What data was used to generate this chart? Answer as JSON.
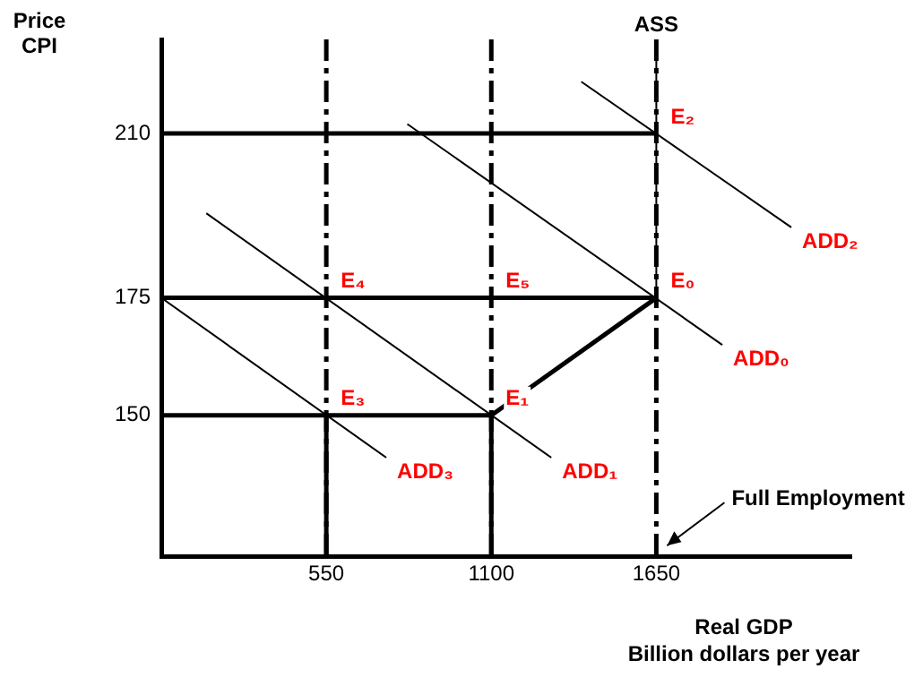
{
  "chart_data": {
    "type": "line",
    "xlabel": "Real GDP\nBillion dollars per year",
    "ylabel": "Price\nCPI",
    "xlim": [
      0,
      2300
    ],
    "ylim": [
      120,
      230
    ],
    "xticks": [
      550,
      1100,
      1650
    ],
    "yticks": [
      150,
      175,
      210
    ],
    "grid": false,
    "legend": false,
    "marker": "none",
    "series": [
      {
        "name": "ADD₂",
        "color": "#000000",
        "x": [
          1400,
          2100
        ],
        "values": [
          221,
          190
        ]
      },
      {
        "name": "ADD₀",
        "color": "#000000",
        "x": [
          820,
          1870
        ],
        "values": [
          212,
          165
        ]
      },
      {
        "name": "ADD₁",
        "color": "#000000",
        "x": [
          150,
          1300
        ],
        "values": [
          193,
          141
        ]
      },
      {
        "name": "ADD₃",
        "color": "#000000",
        "x": [
          0,
          750
        ],
        "values": [
          175,
          141
        ]
      },
      {
        "name": "ASS",
        "color": "#000000",
        "x": [
          1650,
          1650
        ],
        "values": [
          175,
          230
        ]
      },
      {
        "color": "#000000",
        "x": [
          0,
          1650
        ],
        "values": [
          210,
          210
        ]
      },
      {
        "color": "#000000",
        "x": [
          0,
          1650
        ],
        "values": [
          175,
          175
        ]
      },
      {
        "color": "#000000",
        "x": [
          0,
          1100
        ],
        "values": [
          150,
          150
        ]
      },
      {
        "color": "#000000",
        "x": [
          550,
          550
        ],
        "values": [
          120,
          150
        ]
      },
      {
        "color": "#000000",
        "x": [
          1100,
          1100
        ],
        "values": [
          120,
          150
        ]
      },
      {
        "color": "#000000",
        "x": [
          1100,
          1650
        ],
        "values": [
          150,
          175
        ]
      }
    ],
    "ref_lines": [
      {
        "axis": "x",
        "value": 550,
        "color": "#000000",
        "line_style": "dashed"
      },
      {
        "axis": "x",
        "value": 1100,
        "color": "#000000",
        "line_style": "dashed"
      },
      {
        "axis": "x",
        "value": 1650,
        "label": "Full Employment",
        "color": "#000000",
        "line_style": "dashed"
      }
    ],
    "annotations": [
      {
        "text": "E₂",
        "x": 1650,
        "y": 210
      },
      {
        "text": "E₀",
        "x": 1650,
        "y": 175
      },
      {
        "text": "E₄",
        "x": 550,
        "y": 175
      },
      {
        "text": "E₅",
        "x": 1100,
        "y": 175
      },
      {
        "text": "E₃",
        "x": 550,
        "y": 150
      },
      {
        "text": "E₁",
        "x": 1100,
        "y": 150
      }
    ]
  }
}
